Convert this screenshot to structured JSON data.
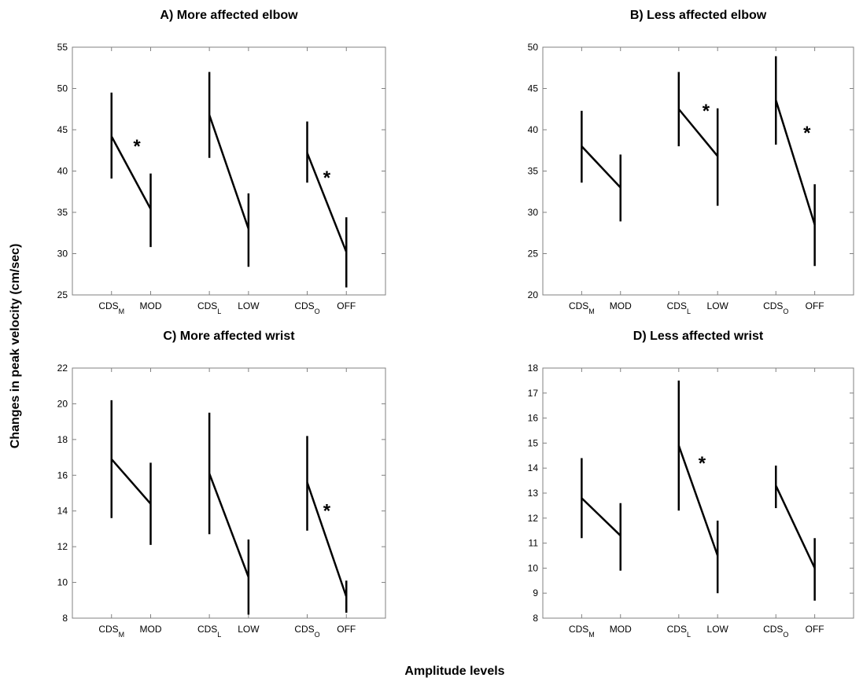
{
  "figure": {
    "ylabel": "Changes in peak velocity (cm/sec)",
    "xlabel": "Amplitude levels",
    "colors": {
      "line": "#000000",
      "axis": "#808080",
      "text": "#000000"
    }
  },
  "chart_data": [
    {
      "type": "line",
      "title": "A) More affected elbow",
      "ylim": [
        25,
        55
      ],
      "yticks": [
        25,
        30,
        35,
        40,
        45,
        50,
        55
      ],
      "xlim": [
        0,
        8
      ],
      "xticks": [
        {
          "x": 1,
          "base": "CDS",
          "sub": "M"
        },
        {
          "x": 2,
          "base": "MOD",
          "sub": ""
        },
        {
          "x": 3.5,
          "base": "CDS",
          "sub": "L"
        },
        {
          "x": 4.5,
          "base": "LOW",
          "sub": ""
        },
        {
          "x": 6,
          "base": "CDS",
          "sub": "O"
        },
        {
          "x": 7,
          "base": "OFF",
          "sub": ""
        }
      ],
      "pairs": [
        {
          "x1": 1,
          "y1": 44.2,
          "e1": [
            39.1,
            49.5
          ],
          "x2": 2,
          "y2": 35.4,
          "e2": [
            30.8,
            39.7
          ]
        },
        {
          "x1": 3.5,
          "y1": 46.8,
          "e1": [
            41.6,
            52.0
          ],
          "x2": 4.5,
          "y2": 33.0,
          "e2": [
            28.4,
            37.3
          ]
        },
        {
          "x1": 6,
          "y1": 42.2,
          "e1": [
            38.6,
            46.0
          ],
          "x2": 7,
          "y2": 30.2,
          "e2": [
            25.9,
            34.4
          ]
        }
      ],
      "stars": [
        {
          "x": 1.65,
          "y": 43.0,
          "text": "*"
        },
        {
          "x": 6.5,
          "y": 39.2,
          "text": "*"
        }
      ]
    },
    {
      "type": "line",
      "title": "B) Less affected elbow",
      "ylim": [
        20,
        50
      ],
      "yticks": [
        20,
        25,
        30,
        35,
        40,
        45,
        50
      ],
      "xlim": [
        0,
        8
      ],
      "xticks": [
        {
          "x": 1,
          "base": "CDS",
          "sub": "M"
        },
        {
          "x": 2,
          "base": "MOD",
          "sub": ""
        },
        {
          "x": 3.5,
          "base": "CDS",
          "sub": "L"
        },
        {
          "x": 4.5,
          "base": "LOW",
          "sub": ""
        },
        {
          "x": 6,
          "base": "CDS",
          "sub": "O"
        },
        {
          "x": 7,
          "base": "OFF",
          "sub": ""
        }
      ],
      "pairs": [
        {
          "x1": 1,
          "y1": 38.0,
          "e1": [
            33.6,
            42.3
          ],
          "x2": 2,
          "y2": 33.0,
          "e2": [
            28.9,
            37.0
          ]
        },
        {
          "x1": 3.5,
          "y1": 42.5,
          "e1": [
            38.0,
            47.0
          ],
          "x2": 4.5,
          "y2": 36.8,
          "e2": [
            30.8,
            42.6
          ]
        },
        {
          "x1": 6,
          "y1": 43.6,
          "e1": [
            38.2,
            48.9
          ],
          "x2": 7,
          "y2": 28.5,
          "e2": [
            23.5,
            33.4
          ]
        }
      ],
      "stars": [
        {
          "x": 4.2,
          "y": 42.3,
          "text": "*"
        },
        {
          "x": 6.8,
          "y": 39.6,
          "text": "*"
        }
      ]
    },
    {
      "type": "line",
      "title": "C) More affected wrist",
      "ylim": [
        8,
        22
      ],
      "yticks": [
        8,
        10,
        12,
        14,
        16,
        18,
        20,
        22
      ],
      "xlim": [
        0,
        8
      ],
      "xticks": [
        {
          "x": 1,
          "base": "CDS",
          "sub": "M"
        },
        {
          "x": 2,
          "base": "MOD",
          "sub": ""
        },
        {
          "x": 3.5,
          "base": "CDS",
          "sub": "L"
        },
        {
          "x": 4.5,
          "base": "LOW",
          "sub": ""
        },
        {
          "x": 6,
          "base": "CDS",
          "sub": "O"
        },
        {
          "x": 7,
          "base": "OFF",
          "sub": ""
        }
      ],
      "pairs": [
        {
          "x1": 1,
          "y1": 16.9,
          "e1": [
            13.6,
            20.2
          ],
          "x2": 2,
          "y2": 14.4,
          "e2": [
            12.1,
            16.7
          ]
        },
        {
          "x1": 3.5,
          "y1": 16.1,
          "e1": [
            12.7,
            19.5
          ],
          "x2": 4.5,
          "y2": 10.3,
          "e2": [
            8.2,
            12.4
          ]
        },
        {
          "x1": 6,
          "y1": 15.6,
          "e1": [
            12.9,
            18.2
          ],
          "x2": 7,
          "y2": 9.2,
          "e2": [
            8.3,
            10.1
          ]
        }
      ],
      "stars": [
        {
          "x": 6.5,
          "y": 14.0,
          "text": "*"
        }
      ]
    },
    {
      "type": "line",
      "title": "D) Less affected wrist",
      "ylim": [
        8,
        18
      ],
      "yticks": [
        8,
        9,
        10,
        11,
        12,
        13,
        14,
        15,
        16,
        17,
        18
      ],
      "xlim": [
        0,
        8
      ],
      "xticks": [
        {
          "x": 1,
          "base": "CDS",
          "sub": "M"
        },
        {
          "x": 2,
          "base": "MOD",
          "sub": ""
        },
        {
          "x": 3.5,
          "base": "CDS",
          "sub": "L"
        },
        {
          "x": 4.5,
          "base": "LOW",
          "sub": ""
        },
        {
          "x": 6,
          "base": "CDS",
          "sub": "O"
        },
        {
          "x": 7,
          "base": "OFF",
          "sub": ""
        }
      ],
      "pairs": [
        {
          "x1": 1,
          "y1": 12.8,
          "e1": [
            11.2,
            14.4
          ],
          "x2": 2,
          "y2": 11.3,
          "e2": [
            9.9,
            12.6
          ]
        },
        {
          "x1": 3.5,
          "y1": 14.9,
          "e1": [
            12.3,
            17.5
          ],
          "x2": 4.5,
          "y2": 10.5,
          "e2": [
            9.0,
            11.9
          ]
        },
        {
          "x1": 6,
          "y1": 13.3,
          "e1": [
            12.4,
            14.1
          ],
          "x2": 7,
          "y2": 10.0,
          "e2": [
            8.7,
            11.2
          ]
        }
      ],
      "stars": [
        {
          "x": 4.1,
          "y": 14.2,
          "text": "*"
        }
      ]
    }
  ]
}
